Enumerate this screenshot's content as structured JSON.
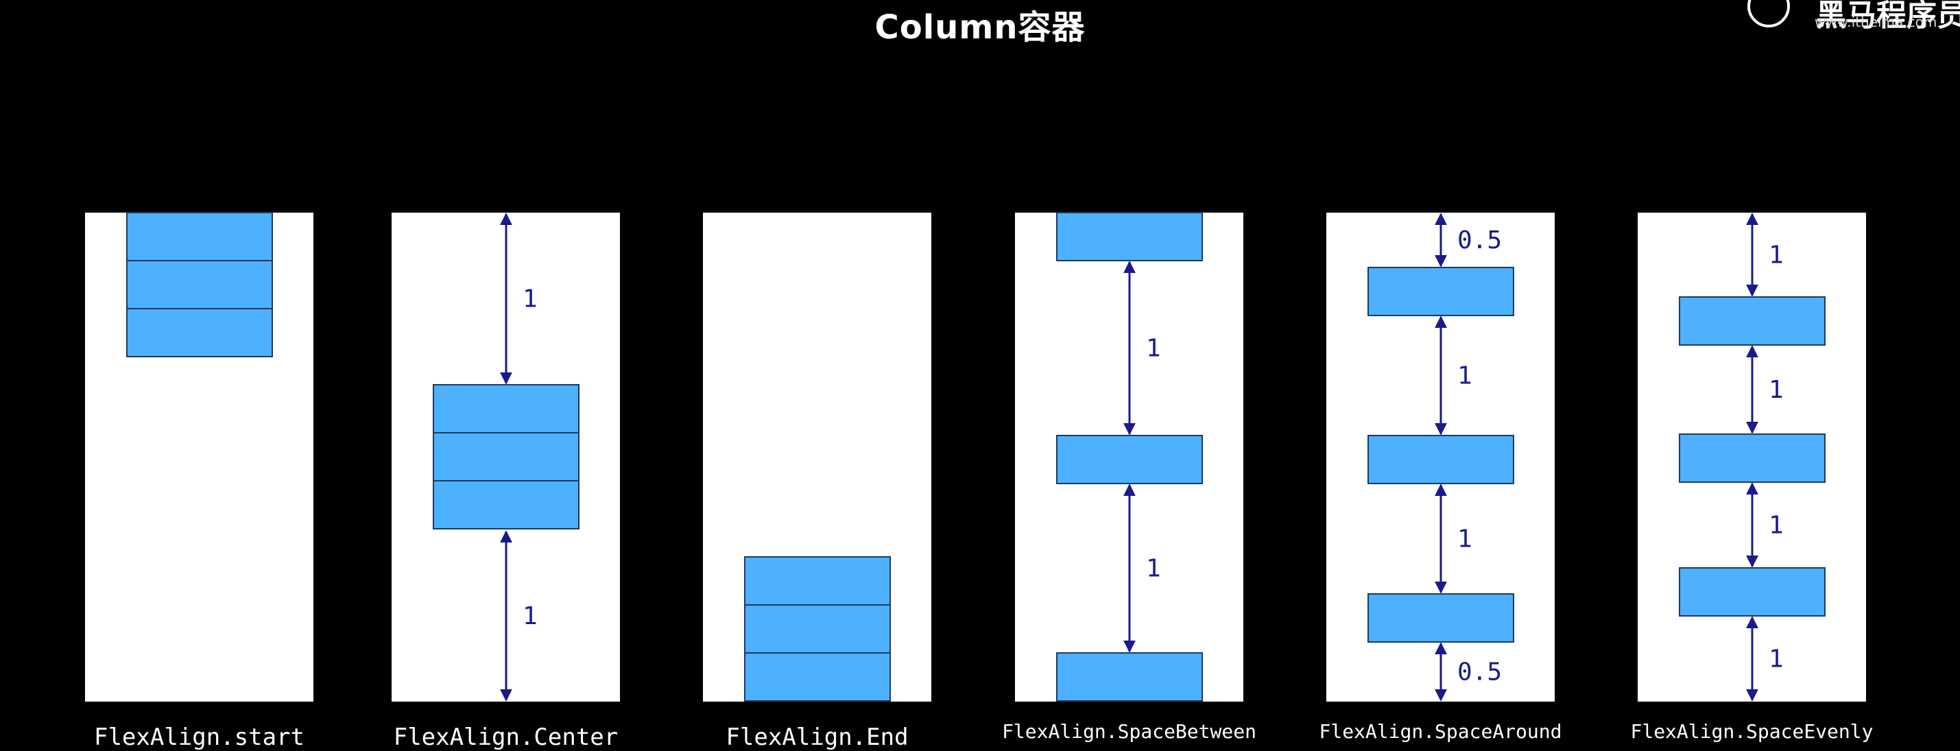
{
  "title": "Column容器",
  "logo": {
    "name": "黑马程序员",
    "url": "www.itheima.com"
  },
  "panels": [
    {
      "caption": "FlexAlign.start",
      "arrow_labels": []
    },
    {
      "caption": "FlexAlign.Center",
      "arrow_labels": [
        "1",
        "1"
      ]
    },
    {
      "caption": "FlexAlign.End",
      "arrow_labels": []
    },
    {
      "caption": "FlexAlign.SpaceBetween",
      "arrow_labels": [
        "1",
        "1"
      ]
    },
    {
      "caption": "FlexAlign.SpaceAround",
      "arrow_labels": [
        "0.5",
        "1",
        "1",
        "0.5"
      ]
    },
    {
      "caption": "FlexAlign.SpaceEvenly",
      "arrow_labels": [
        "1",
        "1",
        "1",
        "1"
      ]
    }
  ],
  "colors": {
    "box": "#4db1ff",
    "arrow": "#1a1a8c",
    "panel": "#ffffff"
  }
}
